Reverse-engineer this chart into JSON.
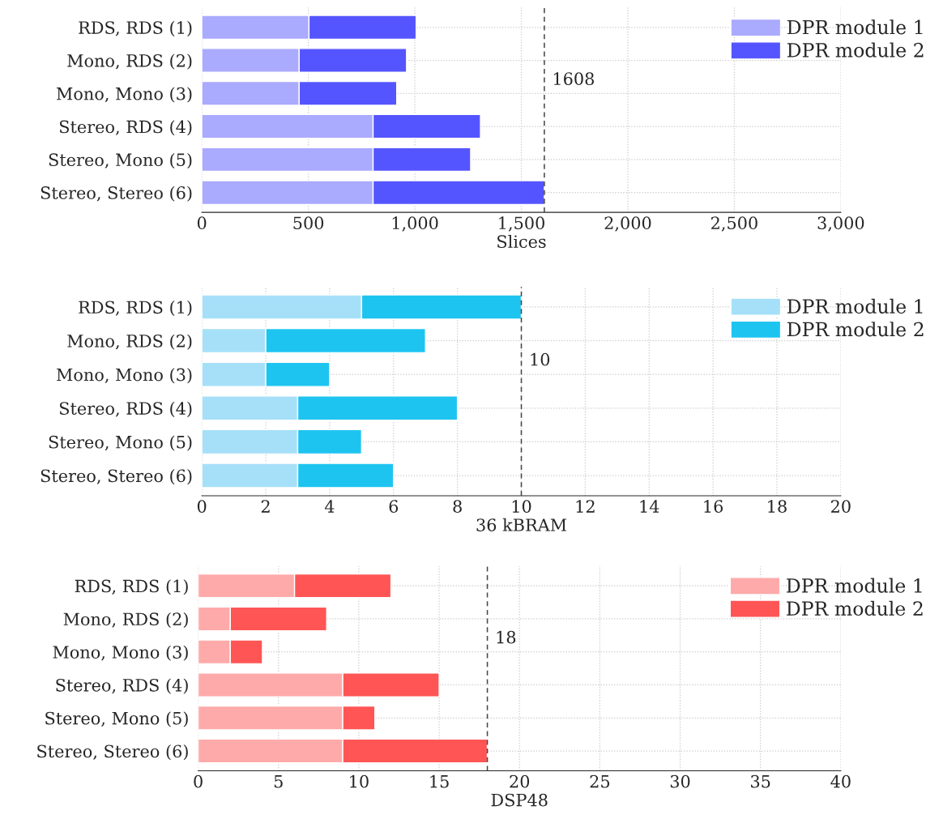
{
  "chart_data": [
    {
      "type": "bar",
      "orientation": "horizontal",
      "stacked": true,
      "xlabel": "Slices",
      "categories": [
        "RDS, RDS (1)",
        "Mono, RDS (2)",
        "Mono, Mono (3)",
        "Stereo, RDS (4)",
        "Stereo, Mono (5)",
        "Stereo, Stereo (6)"
      ],
      "series": [
        {
          "name": "DPR module 1",
          "color": "#aaaaff",
          "values": [
            503,
            457,
            457,
            804,
            804,
            804
          ]
        },
        {
          "name": "DPR module 2",
          "color": "#5555ff",
          "values": [
            503,
            504,
            458,
            504,
            458,
            804
          ]
        }
      ],
      "xlim": [
        0,
        3000
      ],
      "xticks": [
        0,
        500,
        {
          "value": 1000,
          "label": "1,000"
        },
        {
          "value": 1500,
          "label": "1,500"
        },
        {
          "value": 2000,
          "label": "2,000"
        },
        {
          "value": 2500,
          "label": "2,500"
        },
        {
          "value": 3000,
          "label": "3,000"
        }
      ],
      "ref_lines": [
        {
          "axis": "x",
          "value": 1608,
          "label": "1608",
          "line_style": "dashed"
        }
      ],
      "grid": true,
      "legend": "top right"
    },
    {
      "type": "bar",
      "orientation": "horizontal",
      "stacked": true,
      "xlabel": "36 kBRAM",
      "categories": [
        "RDS, RDS (1)",
        "Mono, RDS (2)",
        "Mono, Mono (3)",
        "Stereo, RDS (4)",
        "Stereo, Mono (5)",
        "Stereo, Stereo (6)"
      ],
      "series": [
        {
          "name": "DPR module 1",
          "color": "#a6e0f8",
          "values": [
            5,
            2,
            2,
            3,
            3,
            3
          ]
        },
        {
          "name": "DPR module 2",
          "color": "#1ec4f0",
          "values": [
            5,
            5,
            2,
            5,
            2,
            3
          ]
        }
      ],
      "xlim": [
        0,
        20
      ],
      "xticks": [
        0,
        2,
        4,
        6,
        8,
        10,
        12,
        14,
        16,
        18,
        20
      ],
      "ref_lines": [
        {
          "axis": "x",
          "value": 10,
          "label": "10",
          "line_style": "dashed"
        }
      ],
      "grid": true,
      "legend": "top right"
    },
    {
      "type": "bar",
      "orientation": "horizontal",
      "stacked": true,
      "xlabel": "DSP48",
      "categories": [
        "RDS, RDS (1)",
        "Mono, RDS (2)",
        "Mono, Mono (3)",
        "Stereo, RDS (4)",
        "Stereo, Mono (5)",
        "Stereo, Stereo (6)"
      ],
      "series": [
        {
          "name": "DPR module 1",
          "color": "#ffaaaa",
          "values": [
            6,
            2,
            2,
            9,
            9,
            9
          ]
        },
        {
          "name": "DPR module 2",
          "color": "#ff5555",
          "values": [
            6,
            6,
            2,
            6,
            2,
            9
          ]
        }
      ],
      "xlim": [
        0,
        40
      ],
      "xticks": [
        0,
        5,
        10,
        15,
        20,
        25,
        30,
        35,
        40
      ],
      "ref_lines": [
        {
          "axis": "x",
          "value": 18,
          "label": "18",
          "line_style": "dashed"
        }
      ],
      "grid": true,
      "legend": "top right"
    }
  ]
}
